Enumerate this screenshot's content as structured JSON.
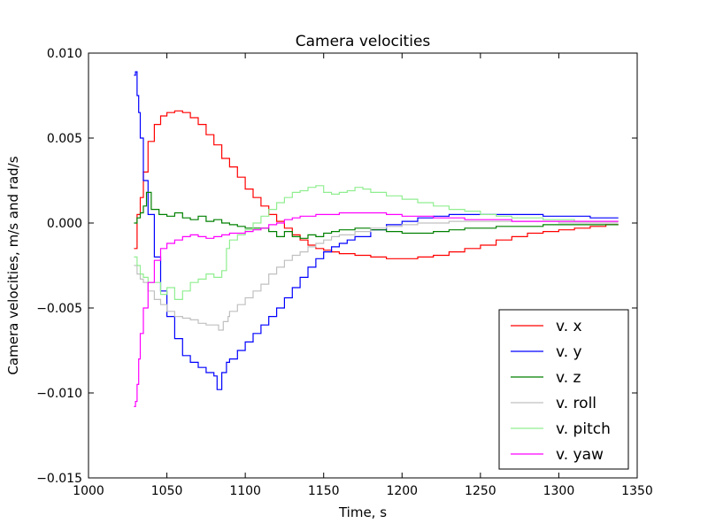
{
  "chart_data": {
    "type": "line",
    "title": "Camera velocities",
    "xlabel": "Time, s",
    "ylabel": "Camera velocities, m/s and rad/s",
    "xlim": [
      1000,
      1350
    ],
    "ylim": [
      -0.015,
      0.01
    ],
    "xticks": [
      "1000",
      "1050",
      "1100",
      "1150",
      "1200",
      "1250",
      "1300",
      "1350"
    ],
    "yticks": [
      "0.010",
      "0.005",
      "0.000",
      "−0.005",
      "−0.010",
      "−0.015"
    ],
    "grid": false,
    "legend_position": "lower-right",
    "series": [
      {
        "name": "v. x",
        "color": "#ff0000",
        "x": [
          1029,
          1031,
          1033,
          1035,
          1038,
          1042,
          1046,
          1050,
          1055,
          1060,
          1065,
          1070,
          1075,
          1080,
          1085,
          1090,
          1095,
          1100,
          1105,
          1110,
          1115,
          1120,
          1125,
          1130,
          1135,
          1140,
          1145,
          1150,
          1155,
          1160,
          1170,
          1180,
          1190,
          1200,
          1210,
          1220,
          1230,
          1240,
          1250,
          1260,
          1270,
          1280,
          1290,
          1300,
          1310,
          1320,
          1330,
          1338
        ],
        "y": [
          -0.0015,
          0.0005,
          0.0015,
          0.003,
          0.0048,
          0.0058,
          0.0063,
          0.0065,
          0.0066,
          0.0065,
          0.0062,
          0.0058,
          0.0052,
          0.0046,
          0.0038,
          0.0033,
          0.0027,
          0.002,
          0.0015,
          0.001,
          0.0005,
          0.0001,
          -0.0003,
          -0.0007,
          -0.001,
          -0.0013,
          -0.0015,
          -0.0016,
          -0.0017,
          -0.0018,
          -0.0019,
          -0.002,
          -0.0021,
          -0.0021,
          -0.002,
          -0.0019,
          -0.0017,
          -0.0015,
          -0.0013,
          -0.001,
          -0.0008,
          -0.0006,
          -0.0005,
          -0.0004,
          -0.0003,
          -0.0002,
          -0.0001,
          -0.0001
        ]
      },
      {
        "name": "v. y",
        "color": "#0000ff",
        "x": [
          1029,
          1030,
          1031,
          1032,
          1033,
          1035,
          1038,
          1042,
          1046,
          1050,
          1055,
          1060,
          1065,
          1070,
          1075,
          1080,
          1082,
          1085,
          1088,
          1090,
          1095,
          1100,
          1105,
          1110,
          1115,
          1120,
          1125,
          1130,
          1135,
          1140,
          1145,
          1150,
          1155,
          1160,
          1165,
          1170,
          1180,
          1190,
          1200,
          1210,
          1220,
          1230,
          1240,
          1250,
          1260,
          1270,
          1280,
          1290,
          1300,
          1310,
          1320,
          1330,
          1338
        ],
        "y": [
          0.0087,
          0.0089,
          0.0075,
          0.0065,
          0.005,
          0.0025,
          0.0005,
          -0.002,
          -0.004,
          -0.0055,
          -0.0068,
          -0.0078,
          -0.0082,
          -0.0085,
          -0.0088,
          -0.009,
          -0.0098,
          -0.0088,
          -0.0082,
          -0.008,
          -0.0075,
          -0.007,
          -0.0065,
          -0.006,
          -0.0055,
          -0.005,
          -0.0044,
          -0.0038,
          -0.0032,
          -0.0026,
          -0.0021,
          -0.0017,
          -0.0014,
          -0.0012,
          -0.001,
          -0.0008,
          -0.0004,
          -0.0001,
          0.0001,
          0.0003,
          0.0004,
          0.0005,
          0.0005,
          0.0005,
          0.0005,
          0.0005,
          0.0005,
          0.0004,
          0.0004,
          0.0004,
          0.0003,
          0.0003,
          0.0003
        ]
      },
      {
        "name": "v. z",
        "color": "#008000",
        "x": [
          1029,
          1031,
          1033,
          1035,
          1037,
          1040,
          1045,
          1050,
          1055,
          1060,
          1065,
          1070,
          1075,
          1080,
          1085,
          1090,
          1095,
          1100,
          1105,
          1110,
          1115,
          1120,
          1125,
          1130,
          1135,
          1140,
          1145,
          1150,
          1155,
          1160,
          1170,
          1180,
          1190,
          1200,
          1210,
          1220,
          1230,
          1240,
          1250,
          1260,
          1270,
          1280,
          1290,
          1300,
          1310,
          1320,
          1330,
          1338
        ],
        "y": [
          0.0,
          0.0003,
          0.0006,
          0.001,
          0.0018,
          0.0008,
          0.0005,
          0.0004,
          0.0006,
          0.0003,
          0.0002,
          0.0004,
          0.0001,
          0.0002,
          0.0,
          -0.0001,
          -0.0002,
          -0.0003,
          -0.0003,
          -0.0003,
          -0.0005,
          -0.0008,
          -0.0005,
          -0.0008,
          -0.0009,
          -0.0007,
          -0.0008,
          -0.0006,
          -0.0005,
          -0.0004,
          -0.0003,
          -0.0004,
          -0.0005,
          -0.0006,
          -0.0006,
          -0.0005,
          -0.0004,
          -0.0003,
          -0.0003,
          -0.0002,
          -0.0002,
          -0.0002,
          -0.0001,
          -0.0001,
          -0.0001,
          -0.0001,
          -0.0001,
          -0.0001
        ]
      },
      {
        "name": "v. roll",
        "color": "#c0c0c0",
        "x": [
          1029,
          1031,
          1033,
          1035,
          1038,
          1042,
          1046,
          1050,
          1055,
          1060,
          1065,
          1070,
          1075,
          1080,
          1083,
          1086,
          1089,
          1090,
          1095,
          1100,
          1105,
          1110,
          1115,
          1120,
          1125,
          1130,
          1135,
          1140,
          1145,
          1150,
          1155,
          1160,
          1170,
          1180,
          1190,
          1200,
          1210,
          1220,
          1230,
          1240,
          1250,
          1260,
          1270,
          1280,
          1290,
          1300,
          1310,
          1320,
          1330,
          1338
        ],
        "y": [
          -0.0025,
          -0.003,
          -0.0033,
          -0.0035,
          -0.004,
          -0.0045,
          -0.0048,
          -0.0052,
          -0.0055,
          -0.0056,
          -0.0057,
          -0.0059,
          -0.006,
          -0.006,
          -0.0063,
          -0.0058,
          -0.0055,
          -0.0052,
          -0.0048,
          -0.0044,
          -0.004,
          -0.0036,
          -0.003,
          -0.0026,
          -0.0022,
          -0.0019,
          -0.0017,
          -0.0014,
          -0.0012,
          -0.001,
          -0.0008,
          -0.0007,
          -0.0005,
          -0.0003,
          -0.0002,
          -0.0001,
          0.0,
          0.0,
          0.0001,
          0.0001,
          0.0001,
          0.0001,
          0.0001,
          0.0001,
          0.0001,
          0.0,
          0.0,
          0.0,
          0.0,
          0.0
        ]
      },
      {
        "name": "v. pitch",
        "color": "#90ee90",
        "x": [
          1029,
          1031,
          1033,
          1035,
          1038,
          1042,
          1046,
          1050,
          1055,
          1060,
          1065,
          1070,
          1075,
          1080,
          1085,
          1088,
          1090,
          1095,
          1100,
          1105,
          1110,
          1115,
          1120,
          1125,
          1130,
          1135,
          1140,
          1145,
          1150,
          1155,
          1160,
          1165,
          1170,
          1175,
          1180,
          1190,
          1200,
          1210,
          1220,
          1230,
          1240,
          1250,
          1260,
          1270,
          1280,
          1290,
          1300,
          1310,
          1320,
          1330,
          1338
        ],
        "y": [
          -0.002,
          -0.0025,
          -0.003,
          -0.0032,
          -0.0035,
          -0.0035,
          -0.0042,
          -0.0038,
          -0.0045,
          -0.004,
          -0.0035,
          -0.0033,
          -0.003,
          -0.0032,
          -0.0028,
          -0.0015,
          -0.001,
          -0.0007,
          -0.0004,
          0.0,
          0.0004,
          0.0008,
          0.0012,
          0.0015,
          0.0018,
          0.0019,
          0.0021,
          0.0022,
          0.0018,
          0.0017,
          0.0018,
          0.0019,
          0.0021,
          0.002,
          0.0018,
          0.0016,
          0.0014,
          0.0012,
          0.001,
          0.0008,
          0.0007,
          0.0005,
          0.0004,
          0.0003,
          0.0003,
          0.0002,
          0.0002,
          0.0001,
          0.0001,
          0.0001,
          0.0001
        ]
      },
      {
        "name": "v. yaw",
        "color": "#ff00ff",
        "x": [
          1029,
          1030,
          1031,
          1032,
          1033,
          1035,
          1038,
          1042,
          1046,
          1050,
          1055,
          1060,
          1065,
          1070,
          1075,
          1080,
          1085,
          1090,
          1095,
          1100,
          1105,
          1110,
          1115,
          1120,
          1125,
          1130,
          1135,
          1140,
          1145,
          1150,
          1160,
          1170,
          1180,
          1190,
          1200,
          1210,
          1220,
          1230,
          1240,
          1250,
          1260,
          1270,
          1280,
          1290,
          1300,
          1310,
          1320,
          1330,
          1338
        ],
        "y": [
          -0.0108,
          -0.0105,
          -0.0095,
          -0.008,
          -0.0065,
          -0.005,
          -0.0035,
          -0.0022,
          -0.0015,
          -0.0012,
          -0.001,
          -0.0008,
          -0.0007,
          -0.0008,
          -0.0009,
          -0.0008,
          -0.0007,
          -0.0006,
          -0.0006,
          -0.0005,
          -0.0004,
          -0.0003,
          -0.0001,
          0.0,
          0.0002,
          0.0003,
          0.0004,
          0.0004,
          0.0005,
          0.0005,
          0.0006,
          0.0006,
          0.0006,
          0.0005,
          0.0004,
          0.0004,
          0.0003,
          0.0003,
          0.0002,
          0.0002,
          0.0002,
          0.0001,
          0.0001,
          0.0001,
          0.0001,
          0.0001,
          0.0001,
          0.0001,
          0.0001
        ]
      }
    ]
  }
}
